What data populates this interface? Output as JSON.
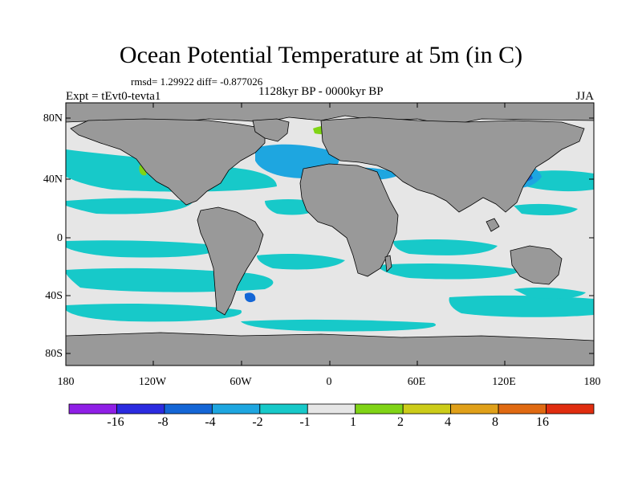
{
  "title": "Ocean Potential Temperature at 5m (in C)",
  "stats": "rmsd= 1.29922 diff= -0.877026",
  "experiment": "Expt = tEvt0-tevta1",
  "period": "1128kyr BP - 0000kyr BP",
  "season": "JJA",
  "lat_labels": [
    "80N",
    "40N",
    "0",
    "40S",
    "80S"
  ],
  "lon_labels": [
    "180",
    "120W",
    "60W",
    "0",
    "60E",
    "120E",
    "180"
  ],
  "colorbar": {
    "colors": [
      "#8f1fe6",
      "#2b2be0",
      "#1466d6",
      "#1ea6e0",
      "#17c9c9",
      "#e6e6e6",
      "#80d416",
      "#cccc19",
      "#e0a019",
      "#e06a12",
      "#e02d0f"
    ],
    "labels": [
      "-16",
      "-8",
      "-4",
      "-2",
      "-1",
      "1",
      "2",
      "4",
      "8",
      "16"
    ]
  },
  "map_colors": {
    "land": "#999999",
    "ocean_neutral": "#e6e6e6",
    "cool_1": "#17c9c9",
    "cool_2": "#1ea6e0",
    "cool_3": "#1466d6",
    "warm_1": "#80d416",
    "warm_2": "#cccc19"
  }
}
